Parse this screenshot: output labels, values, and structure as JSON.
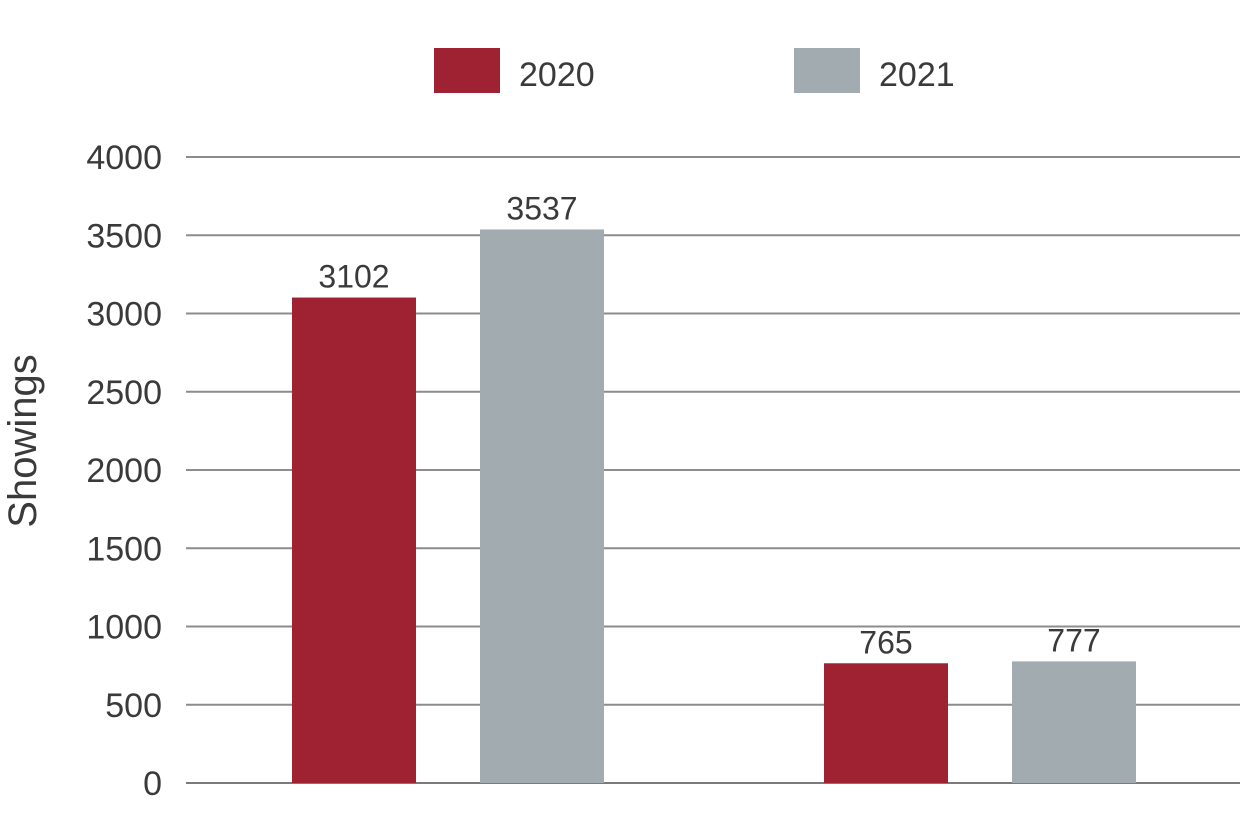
{
  "chart_data": {
    "type": "bar",
    "ylabel": "Showings",
    "ylim": [
      0,
      4000
    ],
    "yticks": [
      0,
      500,
      1000,
      1500,
      2000,
      2500,
      3000,
      3500,
      4000
    ],
    "grid": true,
    "legend_position": "top-center",
    "categories": [
      "",
      ""
    ],
    "series": [
      {
        "name": "2020",
        "color": "#9e2232",
        "values": [
          3102,
          765
        ]
      },
      {
        "name": "2021",
        "color": "#a2abb0",
        "values": [
          3537,
          777
        ]
      }
    ]
  }
}
